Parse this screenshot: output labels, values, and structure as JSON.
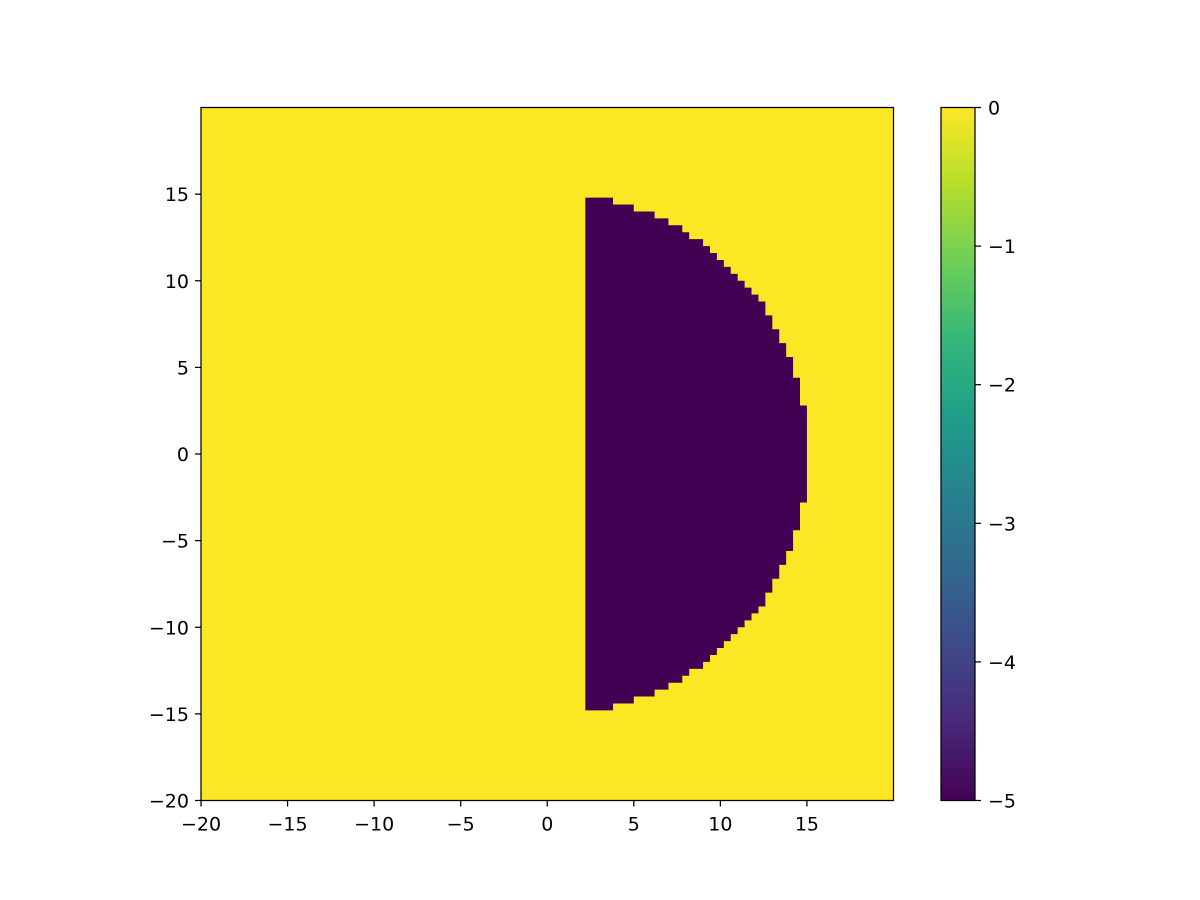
{
  "chart_data": {
    "type": "heatmap",
    "title": "",
    "xlabel": "",
    "ylabel": "",
    "xlim": [
      -20,
      20
    ],
    "ylim": [
      -20,
      20
    ],
    "x_ticks": [
      -20,
      -15,
      -10,
      -5,
      0,
      5,
      10,
      15
    ],
    "x_tick_labels": [
      "−20",
      "−15",
      "−10",
      "−5",
      "0",
      "5",
      "10",
      "15"
    ],
    "y_ticks": [
      -20,
      -15,
      -10,
      -5,
      0,
      5,
      10,
      15
    ],
    "y_tick_labels": [
      "−20",
      "−15",
      "−10",
      "−5",
      "0",
      "5",
      "10",
      "15"
    ],
    "grid": false,
    "colormap": "viridis",
    "colorbar": {
      "range": [
        -5,
        0
      ],
      "ticks": [
        0,
        -1,
        -2,
        -3,
        -4,
        -5
      ],
      "tick_labels": [
        "0",
        "−1",
        "−2",
        "−3",
        "−4",
        "−5"
      ],
      "colors": [
        "#440154",
        "#482878",
        "#3e4989",
        "#31688e",
        "#26828e",
        "#1f9e89",
        "#35b779",
        "#6ece58",
        "#b5de2b",
        "#fde725"
      ]
    },
    "background_value": 0,
    "region": {
      "shape": "half-disk",
      "value": -5,
      "x_min": 2.2,
      "center": [
        0,
        0
      ],
      "radius": 15.1,
      "grid_step": 0.4
    },
    "colors": {
      "low": "#440154",
      "high": "#fde725"
    }
  }
}
